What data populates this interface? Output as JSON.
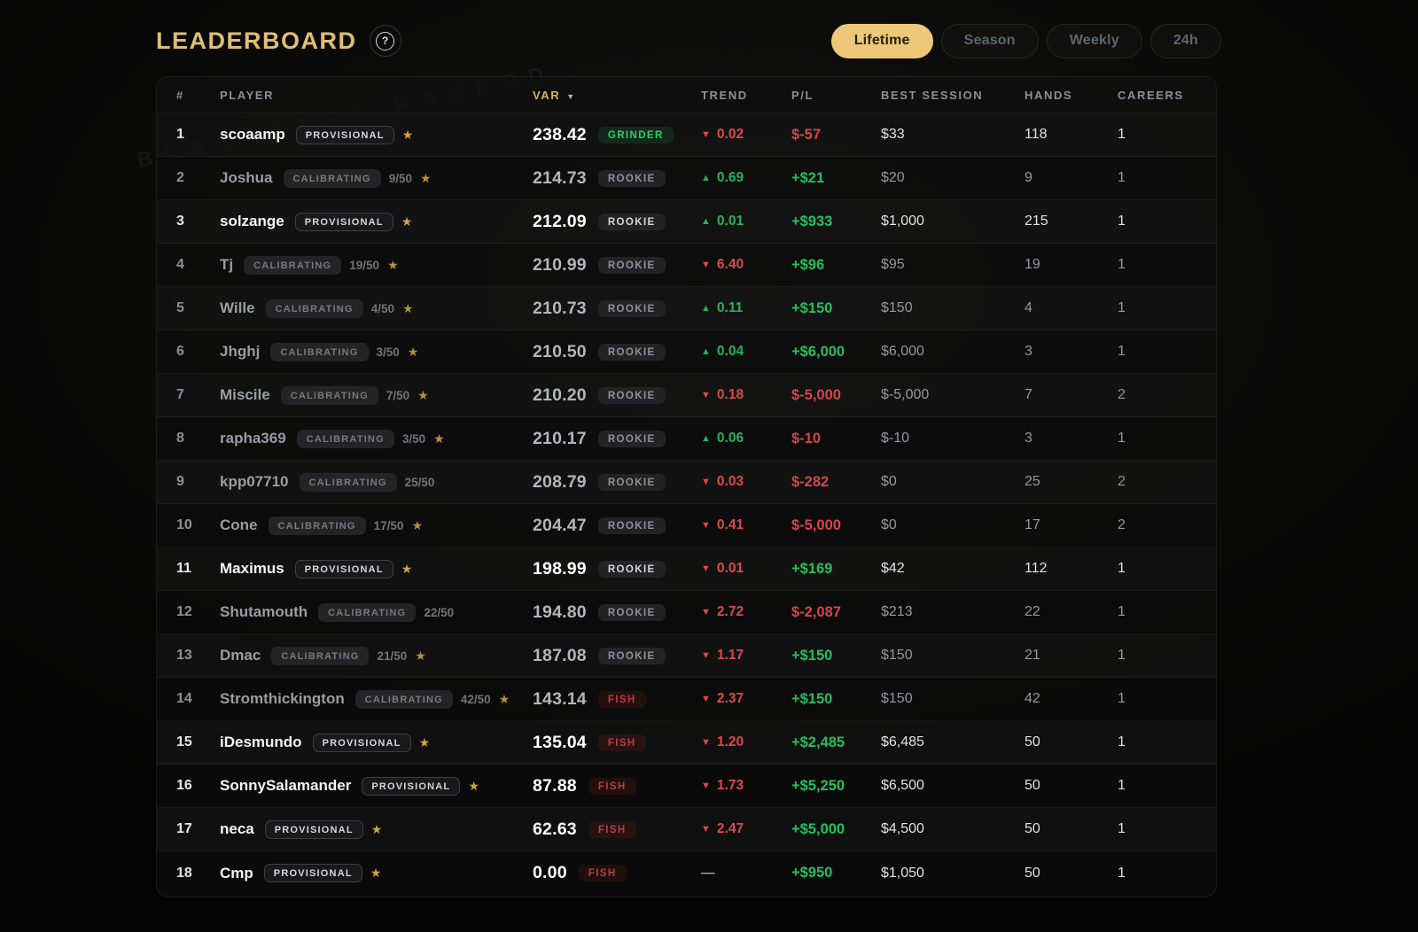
{
  "page": {
    "watermark": "BLACKJACK RANKED"
  },
  "header": {
    "title": "LEADERBOARD",
    "help_icon": "question-mark-icon"
  },
  "tabs": [
    {
      "label": "Lifetime",
      "active": true
    },
    {
      "label": "Season",
      "active": false
    },
    {
      "label": "Weekly",
      "active": false
    },
    {
      "label": "24h",
      "active": false
    }
  ],
  "table": {
    "columns": [
      "#",
      "PLAYER",
      "VAR",
      "TREND",
      "P/L",
      "BEST SESSION",
      "HANDS",
      "CAREERS"
    ],
    "sort_column": "VAR",
    "sort_indicator": "▼",
    "rows": [
      {
        "rank": "1",
        "player": "scoaamp",
        "status": "PROVISIONAL",
        "progress": "",
        "star": true,
        "var": "238.42",
        "tier": "GRINDER",
        "trend_dir": "down",
        "trend": "0.02",
        "pl": "$-57",
        "best_session": "$33",
        "hands": "118",
        "careers": "1"
      },
      {
        "rank": "2",
        "player": "Joshua",
        "status": "CALIBRATING",
        "progress": "9/50",
        "star": true,
        "var": "214.73",
        "tier": "ROOKIE",
        "trend_dir": "up",
        "trend": "0.69",
        "pl": "+$21",
        "best_session": "$20",
        "hands": "9",
        "careers": "1"
      },
      {
        "rank": "3",
        "player": "solzange",
        "status": "PROVISIONAL",
        "progress": "",
        "star": true,
        "var": "212.09",
        "tier": "ROOKIE",
        "trend_dir": "up",
        "trend": "0.01",
        "pl": "+$933",
        "best_session": "$1,000",
        "hands": "215",
        "careers": "1"
      },
      {
        "rank": "4",
        "player": "Tj",
        "status": "CALIBRATING",
        "progress": "19/50",
        "star": true,
        "var": "210.99",
        "tier": "ROOKIE",
        "trend_dir": "down",
        "trend": "6.40",
        "pl": "+$96",
        "best_session": "$95",
        "hands": "19",
        "careers": "1"
      },
      {
        "rank": "5",
        "player": "Wille",
        "status": "CALIBRATING",
        "progress": "4/50",
        "star": true,
        "var": "210.73",
        "tier": "ROOKIE",
        "trend_dir": "up",
        "trend": "0.11",
        "pl": "+$150",
        "best_session": "$150",
        "hands": "4",
        "careers": "1"
      },
      {
        "rank": "6",
        "player": "Jhghj",
        "status": "CALIBRATING",
        "progress": "3/50",
        "star": true,
        "var": "210.50",
        "tier": "ROOKIE",
        "trend_dir": "up",
        "trend": "0.04",
        "pl": "+$6,000",
        "best_session": "$6,000",
        "hands": "3",
        "careers": "1"
      },
      {
        "rank": "7",
        "player": "Miscile",
        "status": "CALIBRATING",
        "progress": "7/50",
        "star": true,
        "var": "210.20",
        "tier": "ROOKIE",
        "trend_dir": "down",
        "trend": "0.18",
        "pl": "$-5,000",
        "best_session": "$-5,000",
        "hands": "7",
        "careers": "2"
      },
      {
        "rank": "8",
        "player": "rapha369",
        "status": "CALIBRATING",
        "progress": "3/50",
        "star": true,
        "var": "210.17",
        "tier": "ROOKIE",
        "trend_dir": "up",
        "trend": "0.06",
        "pl": "$-10",
        "best_session": "$-10",
        "hands": "3",
        "careers": "1"
      },
      {
        "rank": "9",
        "player": "kpp07710",
        "status": "CALIBRATING",
        "progress": "25/50",
        "star": false,
        "var": "208.79",
        "tier": "ROOKIE",
        "trend_dir": "down",
        "trend": "0.03",
        "pl": "$-282",
        "best_session": "$0",
        "hands": "25",
        "careers": "2"
      },
      {
        "rank": "10",
        "player": "Cone",
        "status": "CALIBRATING",
        "progress": "17/50",
        "star": true,
        "var": "204.47",
        "tier": "ROOKIE",
        "trend_dir": "down",
        "trend": "0.41",
        "pl": "$-5,000",
        "best_session": "$0",
        "hands": "17",
        "careers": "2"
      },
      {
        "rank": "11",
        "player": "Maximus",
        "status": "PROVISIONAL",
        "progress": "",
        "star": true,
        "var": "198.99",
        "tier": "ROOKIE",
        "trend_dir": "down",
        "trend": "0.01",
        "pl": "+$169",
        "best_session": "$42",
        "hands": "112",
        "careers": "1"
      },
      {
        "rank": "12",
        "player": "Shutamouth",
        "status": "CALIBRATING",
        "progress": "22/50",
        "star": false,
        "var": "194.80",
        "tier": "ROOKIE",
        "trend_dir": "down",
        "trend": "2.72",
        "pl": "$-2,087",
        "best_session": "$213",
        "hands": "22",
        "careers": "1"
      },
      {
        "rank": "13",
        "player": "Dmac",
        "status": "CALIBRATING",
        "progress": "21/50",
        "star": true,
        "var": "187.08",
        "tier": "ROOKIE",
        "trend_dir": "down",
        "trend": "1.17",
        "pl": "+$150",
        "best_session": "$150",
        "hands": "21",
        "careers": "1"
      },
      {
        "rank": "14",
        "player": "Stromthickington",
        "status": "CALIBRATING",
        "progress": "42/50",
        "star": true,
        "var": "143.14",
        "tier": "FISH",
        "trend_dir": "down",
        "trend": "2.37",
        "pl": "+$150",
        "best_session": "$150",
        "hands": "42",
        "careers": "1"
      },
      {
        "rank": "15",
        "player": "iDesmundo",
        "status": "PROVISIONAL",
        "progress": "",
        "star": true,
        "var": "135.04",
        "tier": "FISH",
        "trend_dir": "down",
        "trend": "1.20",
        "pl": "+$2,485",
        "best_session": "$6,485",
        "hands": "50",
        "careers": "1"
      },
      {
        "rank": "16",
        "player": "SonnySalamander",
        "status": "PROVISIONAL",
        "progress": "",
        "star": true,
        "var": "87.88",
        "tier": "FISH",
        "trend_dir": "down",
        "trend": "1.73",
        "pl": "+$5,250",
        "best_session": "$6,500",
        "hands": "50",
        "careers": "1"
      },
      {
        "rank": "17",
        "player": "neca",
        "status": "PROVISIONAL",
        "progress": "",
        "star": true,
        "var": "62.63",
        "tier": "FISH",
        "trend_dir": "down",
        "trend": "2.47",
        "pl": "+$5,000",
        "best_session": "$4,500",
        "hands": "50",
        "careers": "1"
      },
      {
        "rank": "18",
        "player": "Cmp",
        "status": "PROVISIONAL",
        "progress": "",
        "star": true,
        "var": "0.00",
        "tier": "FISH",
        "trend_dir": "none",
        "trend": "—",
        "pl": "+$950",
        "best_session": "$1,050",
        "hands": "50",
        "careers": "1"
      }
    ]
  },
  "colors": {
    "accent_gold": "#ecc878",
    "title_gold": "#dfbe75",
    "positive_green": "#22c05c",
    "negative_red": "#e0474b",
    "grinder_green": "#27ce67",
    "fish_red": "#b93d3f"
  }
}
